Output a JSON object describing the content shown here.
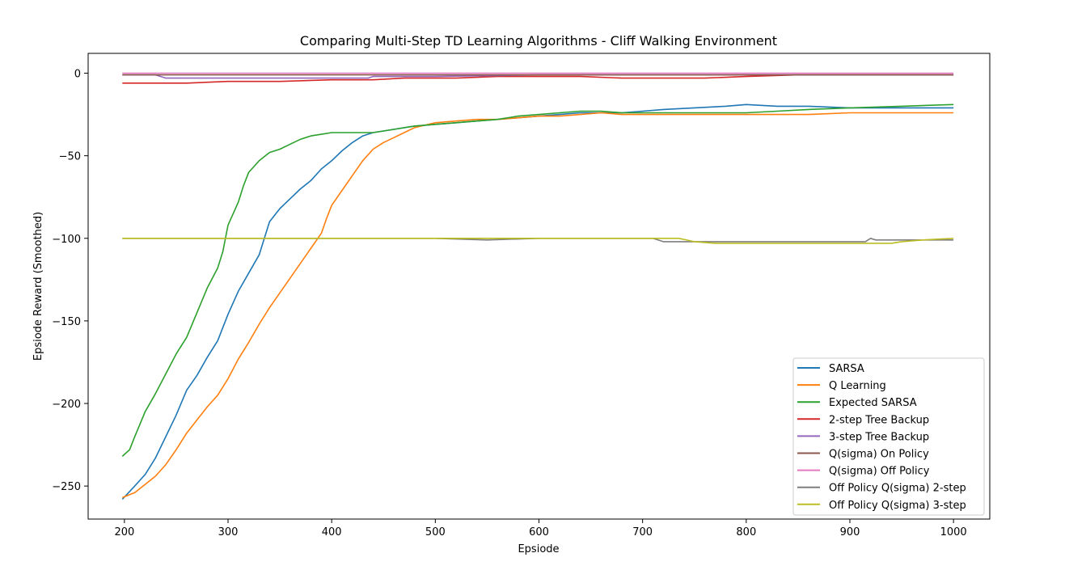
{
  "chart_data": {
    "type": "line",
    "title": "Comparing Multi-Step TD Learning Algorithms - Cliff Walking Environment",
    "xlabel": "Epsiode",
    "ylabel": "Epsiode Reward (Smoothed)",
    "xlim": [
      165,
      1035
    ],
    "ylim": [
      -270,
      12
    ],
    "xticks": [
      200,
      300,
      400,
      500,
      600,
      700,
      800,
      900,
      1000
    ],
    "yticks": [
      0,
      -50,
      -100,
      -150,
      -200,
      -250
    ],
    "xtick_labels": [
      "200",
      "300",
      "400",
      "500",
      "600",
      "700",
      "800",
      "900",
      "1000"
    ],
    "ytick_labels": [
      "0",
      "−50",
      "−100",
      "−150",
      "−200",
      "−250"
    ],
    "grid": false,
    "legend_position": "lower-right",
    "series": [
      {
        "name": "SARSA",
        "color": "#1f77b4",
        "points": [
          [
            198,
            -258
          ],
          [
            210,
            -250
          ],
          [
            220,
            -243
          ],
          [
            230,
            -233
          ],
          [
            240,
            -220
          ],
          [
            250,
            -207
          ],
          [
            260,
            -192
          ],
          [
            270,
            -183
          ],
          [
            280,
            -172
          ],
          [
            290,
            -162
          ],
          [
            300,
            -146
          ],
          [
            310,
            -132
          ],
          [
            320,
            -121
          ],
          [
            330,
            -110
          ],
          [
            335,
            -100
          ],
          [
            340,
            -90
          ],
          [
            350,
            -82
          ],
          [
            360,
            -76
          ],
          [
            370,
            -70
          ],
          [
            380,
            -65
          ],
          [
            390,
            -58
          ],
          [
            400,
            -53
          ],
          [
            410,
            -47
          ],
          [
            420,
            -42
          ],
          [
            430,
            -38
          ],
          [
            440,
            -36
          ],
          [
            460,
            -34
          ],
          [
            480,
            -32
          ],
          [
            500,
            -31
          ],
          [
            520,
            -30
          ],
          [
            540,
            -29
          ],
          [
            560,
            -28
          ],
          [
            580,
            -27
          ],
          [
            600,
            -26
          ],
          [
            620,
            -25
          ],
          [
            640,
            -24
          ],
          [
            660,
            -24
          ],
          [
            680,
            -24
          ],
          [
            700,
            -23
          ],
          [
            720,
            -22
          ],
          [
            750,
            -21
          ],
          [
            780,
            -20
          ],
          [
            800,
            -19
          ],
          [
            830,
            -20
          ],
          [
            860,
            -20
          ],
          [
            900,
            -21
          ],
          [
            950,
            -21
          ],
          [
            1000,
            -21
          ]
        ]
      },
      {
        "name": "Q Learning",
        "color": "#ff7f0e",
        "points": [
          [
            198,
            -257
          ],
          [
            210,
            -254
          ],
          [
            220,
            -249
          ],
          [
            230,
            -244
          ],
          [
            240,
            -237
          ],
          [
            250,
            -228
          ],
          [
            260,
            -218
          ],
          [
            270,
            -210
          ],
          [
            280,
            -202
          ],
          [
            290,
            -195
          ],
          [
            300,
            -185
          ],
          [
            310,
            -173
          ],
          [
            320,
            -163
          ],
          [
            330,
            -152
          ],
          [
            340,
            -142
          ],
          [
            350,
            -133
          ],
          [
            360,
            -124
          ],
          [
            370,
            -115
          ],
          [
            380,
            -106
          ],
          [
            390,
            -97
          ],
          [
            395,
            -88
          ],
          [
            400,
            -80
          ],
          [
            410,
            -71
          ],
          [
            420,
            -62
          ],
          [
            430,
            -53
          ],
          [
            440,
            -46
          ],
          [
            450,
            -42
          ],
          [
            460,
            -39
          ],
          [
            470,
            -36
          ],
          [
            480,
            -33
          ],
          [
            500,
            -30
          ],
          [
            520,
            -29
          ],
          [
            540,
            -28
          ],
          [
            560,
            -28
          ],
          [
            580,
            -27
          ],
          [
            600,
            -26
          ],
          [
            620,
            -26
          ],
          [
            640,
            -25
          ],
          [
            660,
            -24
          ],
          [
            680,
            -25
          ],
          [
            700,
            -25
          ],
          [
            720,
            -25
          ],
          [
            750,
            -25
          ],
          [
            780,
            -25
          ],
          [
            800,
            -25
          ],
          [
            830,
            -25
          ],
          [
            860,
            -25
          ],
          [
            900,
            -24
          ],
          [
            950,
            -24
          ],
          [
            1000,
            -24
          ]
        ]
      },
      {
        "name": "Expected SARSA",
        "color": "#2ca02c",
        "points": [
          [
            198,
            -232
          ],
          [
            205,
            -228
          ],
          [
            210,
            -220
          ],
          [
            220,
            -205
          ],
          [
            230,
            -194
          ],
          [
            240,
            -182
          ],
          [
            250,
            -170
          ],
          [
            260,
            -160
          ],
          [
            270,
            -145
          ],
          [
            280,
            -130
          ],
          [
            290,
            -118
          ],
          [
            295,
            -108
          ],
          [
            300,
            -92
          ],
          [
            310,
            -78
          ],
          [
            315,
            -68
          ],
          [
            320,
            -60
          ],
          [
            330,
            -53
          ],
          [
            340,
            -48
          ],
          [
            350,
            -46
          ],
          [
            360,
            -43
          ],
          [
            370,
            -40
          ],
          [
            380,
            -38
          ],
          [
            390,
            -37
          ],
          [
            400,
            -36
          ],
          [
            420,
            -36
          ],
          [
            440,
            -36
          ],
          [
            460,
            -34
          ],
          [
            480,
            -32
          ],
          [
            500,
            -31
          ],
          [
            520,
            -30
          ],
          [
            540,
            -29
          ],
          [
            560,
            -28
          ],
          [
            580,
            -26
          ],
          [
            600,
            -25
          ],
          [
            620,
            -24
          ],
          [
            640,
            -23
          ],
          [
            660,
            -23
          ],
          [
            680,
            -24
          ],
          [
            700,
            -24
          ],
          [
            720,
            -24
          ],
          [
            750,
            -24
          ],
          [
            780,
            -24
          ],
          [
            800,
            -24
          ],
          [
            830,
            -23
          ],
          [
            860,
            -22
          ],
          [
            900,
            -21
          ],
          [
            950,
            -20
          ],
          [
            1000,
            -19
          ]
        ]
      },
      {
        "name": "2-step Tree Backup",
        "color": "#d62728",
        "points": [
          [
            198,
            -6
          ],
          [
            230,
            -6
          ],
          [
            260,
            -6
          ],
          [
            300,
            -5
          ],
          [
            350,
            -5
          ],
          [
            400,
            -4
          ],
          [
            440,
            -4
          ],
          [
            470,
            -3
          ],
          [
            520,
            -3
          ],
          [
            560,
            -2
          ],
          [
            600,
            -2
          ],
          [
            640,
            -2
          ],
          [
            680,
            -3
          ],
          [
            720,
            -3
          ],
          [
            760,
            -3
          ],
          [
            800,
            -2
          ],
          [
            850,
            -1
          ],
          [
            900,
            -1
          ],
          [
            950,
            -1
          ],
          [
            1000,
            -1
          ]
        ]
      },
      {
        "name": "3-step Tree Backup",
        "color": "#9467bd",
        "points": [
          [
            198,
            -1
          ],
          [
            230,
            -1
          ],
          [
            240,
            -3
          ],
          [
            300,
            -3
          ],
          [
            400,
            -3
          ],
          [
            435,
            -3
          ],
          [
            440,
            -2
          ],
          [
            500,
            -2
          ],
          [
            600,
            -1
          ],
          [
            700,
            -1
          ],
          [
            800,
            -1
          ],
          [
            900,
            -1
          ],
          [
            1000,
            -1
          ]
        ]
      },
      {
        "name": "Q(sigma) On Policy",
        "color": "#8c564b",
        "points": [
          [
            198,
            -1
          ],
          [
            400,
            -1
          ],
          [
            600,
            -1
          ],
          [
            800,
            -1
          ],
          [
            1000,
            -1
          ]
        ]
      },
      {
        "name": "Q(sigma) Off Policy",
        "color": "#e377c2",
        "points": [
          [
            198,
            0
          ],
          [
            300,
            0
          ],
          [
            500,
            0
          ],
          [
            700,
            0
          ],
          [
            900,
            0
          ],
          [
            1000,
            0
          ]
        ]
      },
      {
        "name": "Off Policy Q(sigma) 2-step",
        "color": "#7f7f7f",
        "points": [
          [
            198,
            -100
          ],
          [
            400,
            -100
          ],
          [
            500,
            -100
          ],
          [
            550,
            -101
          ],
          [
            600,
            -100
          ],
          [
            700,
            -100
          ],
          [
            710,
            -100
          ],
          [
            720,
            -102
          ],
          [
            800,
            -102
          ],
          [
            900,
            -102
          ],
          [
            915,
            -102
          ],
          [
            920,
            -100
          ],
          [
            925,
            -101
          ],
          [
            950,
            -101
          ],
          [
            1000,
            -101
          ]
        ]
      },
      {
        "name": "Off Policy Q(sigma) 3-step",
        "color": "#bcbd22",
        "points": [
          [
            198,
            -100
          ],
          [
            400,
            -100
          ],
          [
            600,
            -100
          ],
          [
            700,
            -100
          ],
          [
            735,
            -100
          ],
          [
            750,
            -102
          ],
          [
            770,
            -103
          ],
          [
            800,
            -103
          ],
          [
            900,
            -103
          ],
          [
            940,
            -103
          ],
          [
            950,
            -102
          ],
          [
            970,
            -101
          ],
          [
            1000,
            -100
          ]
        ]
      }
    ]
  }
}
